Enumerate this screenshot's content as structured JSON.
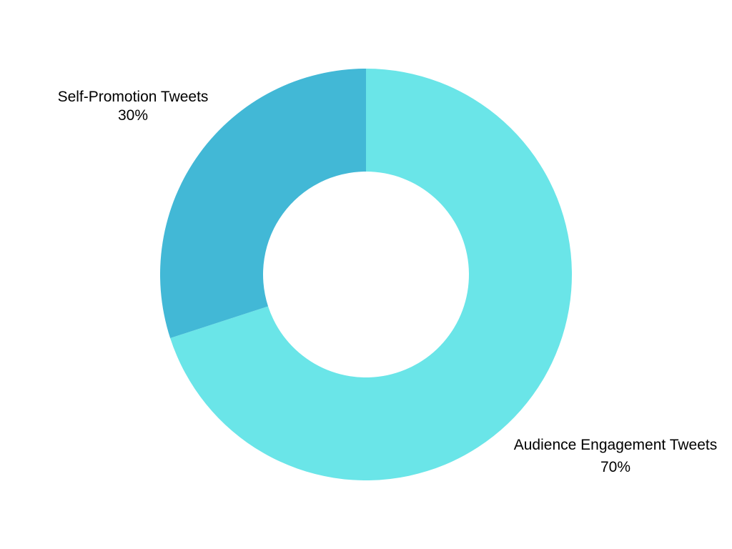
{
  "chart_data": {
    "type": "pie",
    "subtype": "donut",
    "title": "",
    "slices": [
      {
        "label": "Self-Promotion Tweets",
        "value": 30,
        "value_label": "30%",
        "color": "#42b8d6"
      },
      {
        "label": "Audience Engagement Tweets",
        "value": 70,
        "value_label": "70%",
        "color": "#6ae5e8"
      }
    ],
    "legend": "none"
  }
}
